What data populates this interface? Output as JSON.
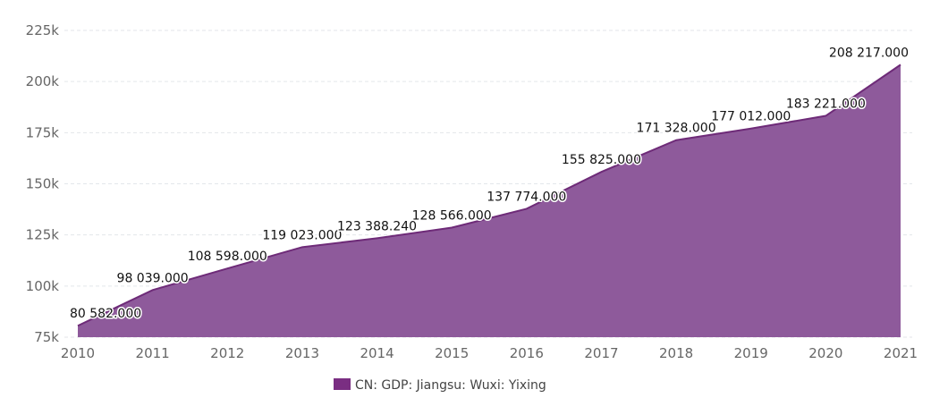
{
  "chart_data": {
    "type": "area",
    "x": [
      "2010",
      "2011",
      "2012",
      "2013",
      "2014",
      "2015",
      "2016",
      "2017",
      "2018",
      "2019",
      "2020",
      "2021"
    ],
    "series": [
      {
        "name": "CN: GDP: Jiangsu: Wuxi: Yixing",
        "values": [
          80582.0,
          98039.0,
          108598.0,
          119023.0,
          123388.24,
          128566.0,
          137774.0,
          155825.0,
          171328.0,
          177012.0,
          183221.0,
          208217.0
        ],
        "labels": [
          "80 582.000",
          "98 039.000",
          "108 598.000",
          "119 023.000",
          "123 388.240",
          "128 566.000",
          "137 774.000",
          "155 825.000",
          "171 328.000",
          "177 012.000",
          "183 221.000",
          "208 217.000"
        ]
      }
    ],
    "yticks": [
      75000,
      100000,
      125000,
      150000,
      175000,
      200000,
      225000
    ],
    "ytick_labels": [
      "75k",
      "100k",
      "125k",
      "150k",
      "175k",
      "200k",
      "225k"
    ],
    "ylim": [
      75000,
      225000
    ],
    "grid": true,
    "legend_position": "bottom-center",
    "colors": {
      "fill": "#8e5a9b",
      "line": "#6e2b78",
      "legend_swatch": "#7a2e82"
    }
  },
  "legend": {
    "label": "CN: GDP: Jiangsu: Wuxi: Yixing"
  }
}
